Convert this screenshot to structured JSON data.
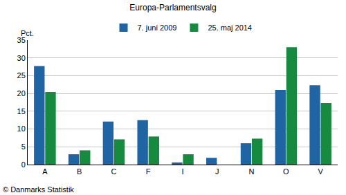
{
  "chart_data": {
    "type": "bar",
    "title": "Europa-Parlamentsvalg",
    "ylabel": "Pct.",
    "categories": [
      "A",
      "B",
      "C",
      "F",
      "I",
      "J",
      "N",
      "O",
      "V"
    ],
    "series": [
      {
        "name": "7. juni 2009",
        "color": "#1f64a3",
        "values": [
          27.7,
          2.9,
          12.1,
          12.5,
          0.6,
          1.9,
          6.0,
          21.0,
          22.3
        ]
      },
      {
        "name": "25. maj 2014",
        "color": "#168a3f",
        "values": [
          20.4,
          4.0,
          7.1,
          7.9,
          2.9,
          null,
          7.3,
          33.0,
          17.3
        ]
      }
    ],
    "ylim": [
      0,
      35
    ],
    "yticks": [
      0,
      5,
      10,
      15,
      20,
      25,
      30,
      35
    ],
    "grid": true,
    "legend": "top",
    "annotations": [
      "© Danmarks Statistik"
    ]
  }
}
